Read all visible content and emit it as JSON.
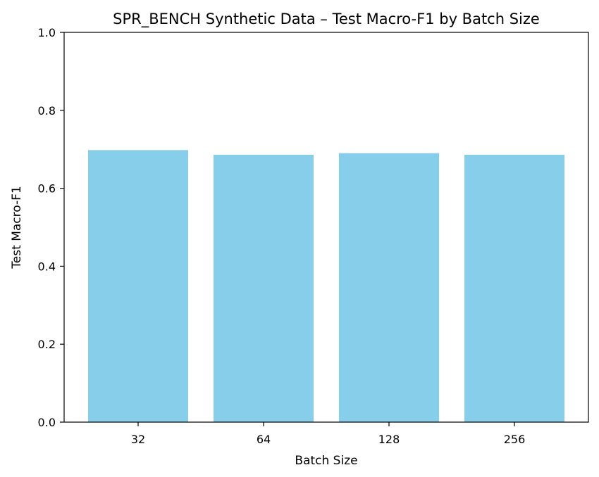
{
  "chart_data": {
    "type": "bar",
    "title": "SPR_BENCH Synthetic Data – Test Macro-F1 by Batch Size",
    "xlabel": "Batch Size",
    "ylabel": "Test Macro-F1",
    "categories": [
      "32",
      "64",
      "128",
      "256"
    ],
    "values": [
      0.698,
      0.686,
      0.69,
      0.686
    ],
    "ylim": [
      0,
      1.0
    ],
    "yticks": [
      0.0,
      0.2,
      0.4,
      0.6,
      0.8,
      1.0
    ],
    "ytick_labels": [
      "0.0",
      "0.2",
      "0.4",
      "0.6",
      "0.8",
      "1.0"
    ],
    "bar_color": "#87ceeb",
    "grid": false,
    "legend": "none"
  }
}
